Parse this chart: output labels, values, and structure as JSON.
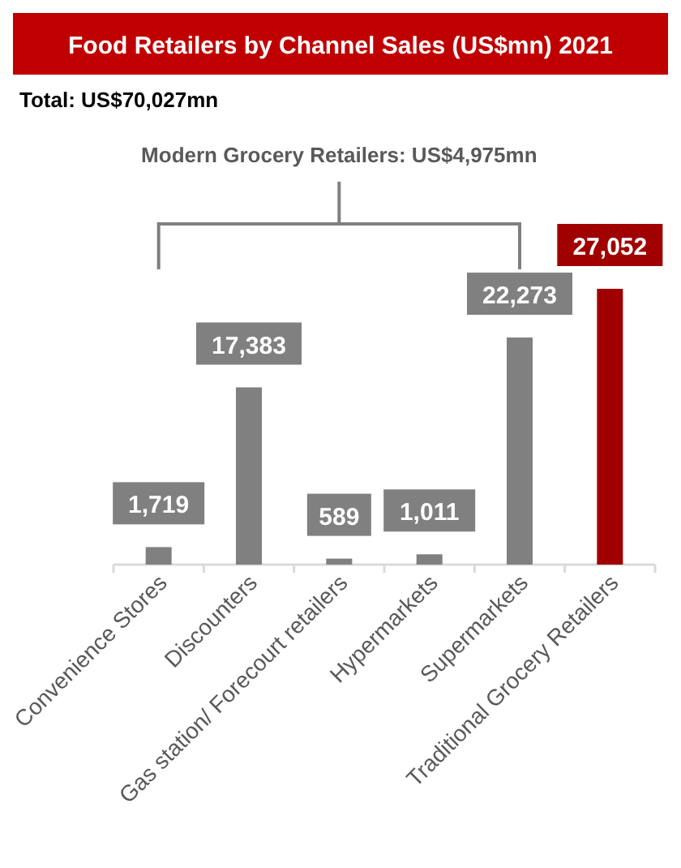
{
  "chart_data": {
    "type": "bar",
    "title": "Food Retailers by Channel Sales (US$mn) 2021",
    "categories": [
      "Convenience Stores",
      "Discounters",
      "Gas station/ Forecourt retailers",
      "Hypermarkets",
      "Supermarkets",
      "Traditional Grocery Retailers"
    ],
    "values": [
      1719,
      17383,
      589,
      1011,
      22273,
      27052
    ],
    "colors": [
      "#808080",
      "#808080",
      "#808080",
      "#808080",
      "#808080",
      "#a00000"
    ],
    "value_labels": [
      "1,719",
      "17,383",
      "589",
      "1,011",
      "22,273",
      "27,052"
    ],
    "annotations": [
      "Total: US$70,027mn",
      "Modern Grocery Retailers: US$4,975mn"
    ]
  }
}
